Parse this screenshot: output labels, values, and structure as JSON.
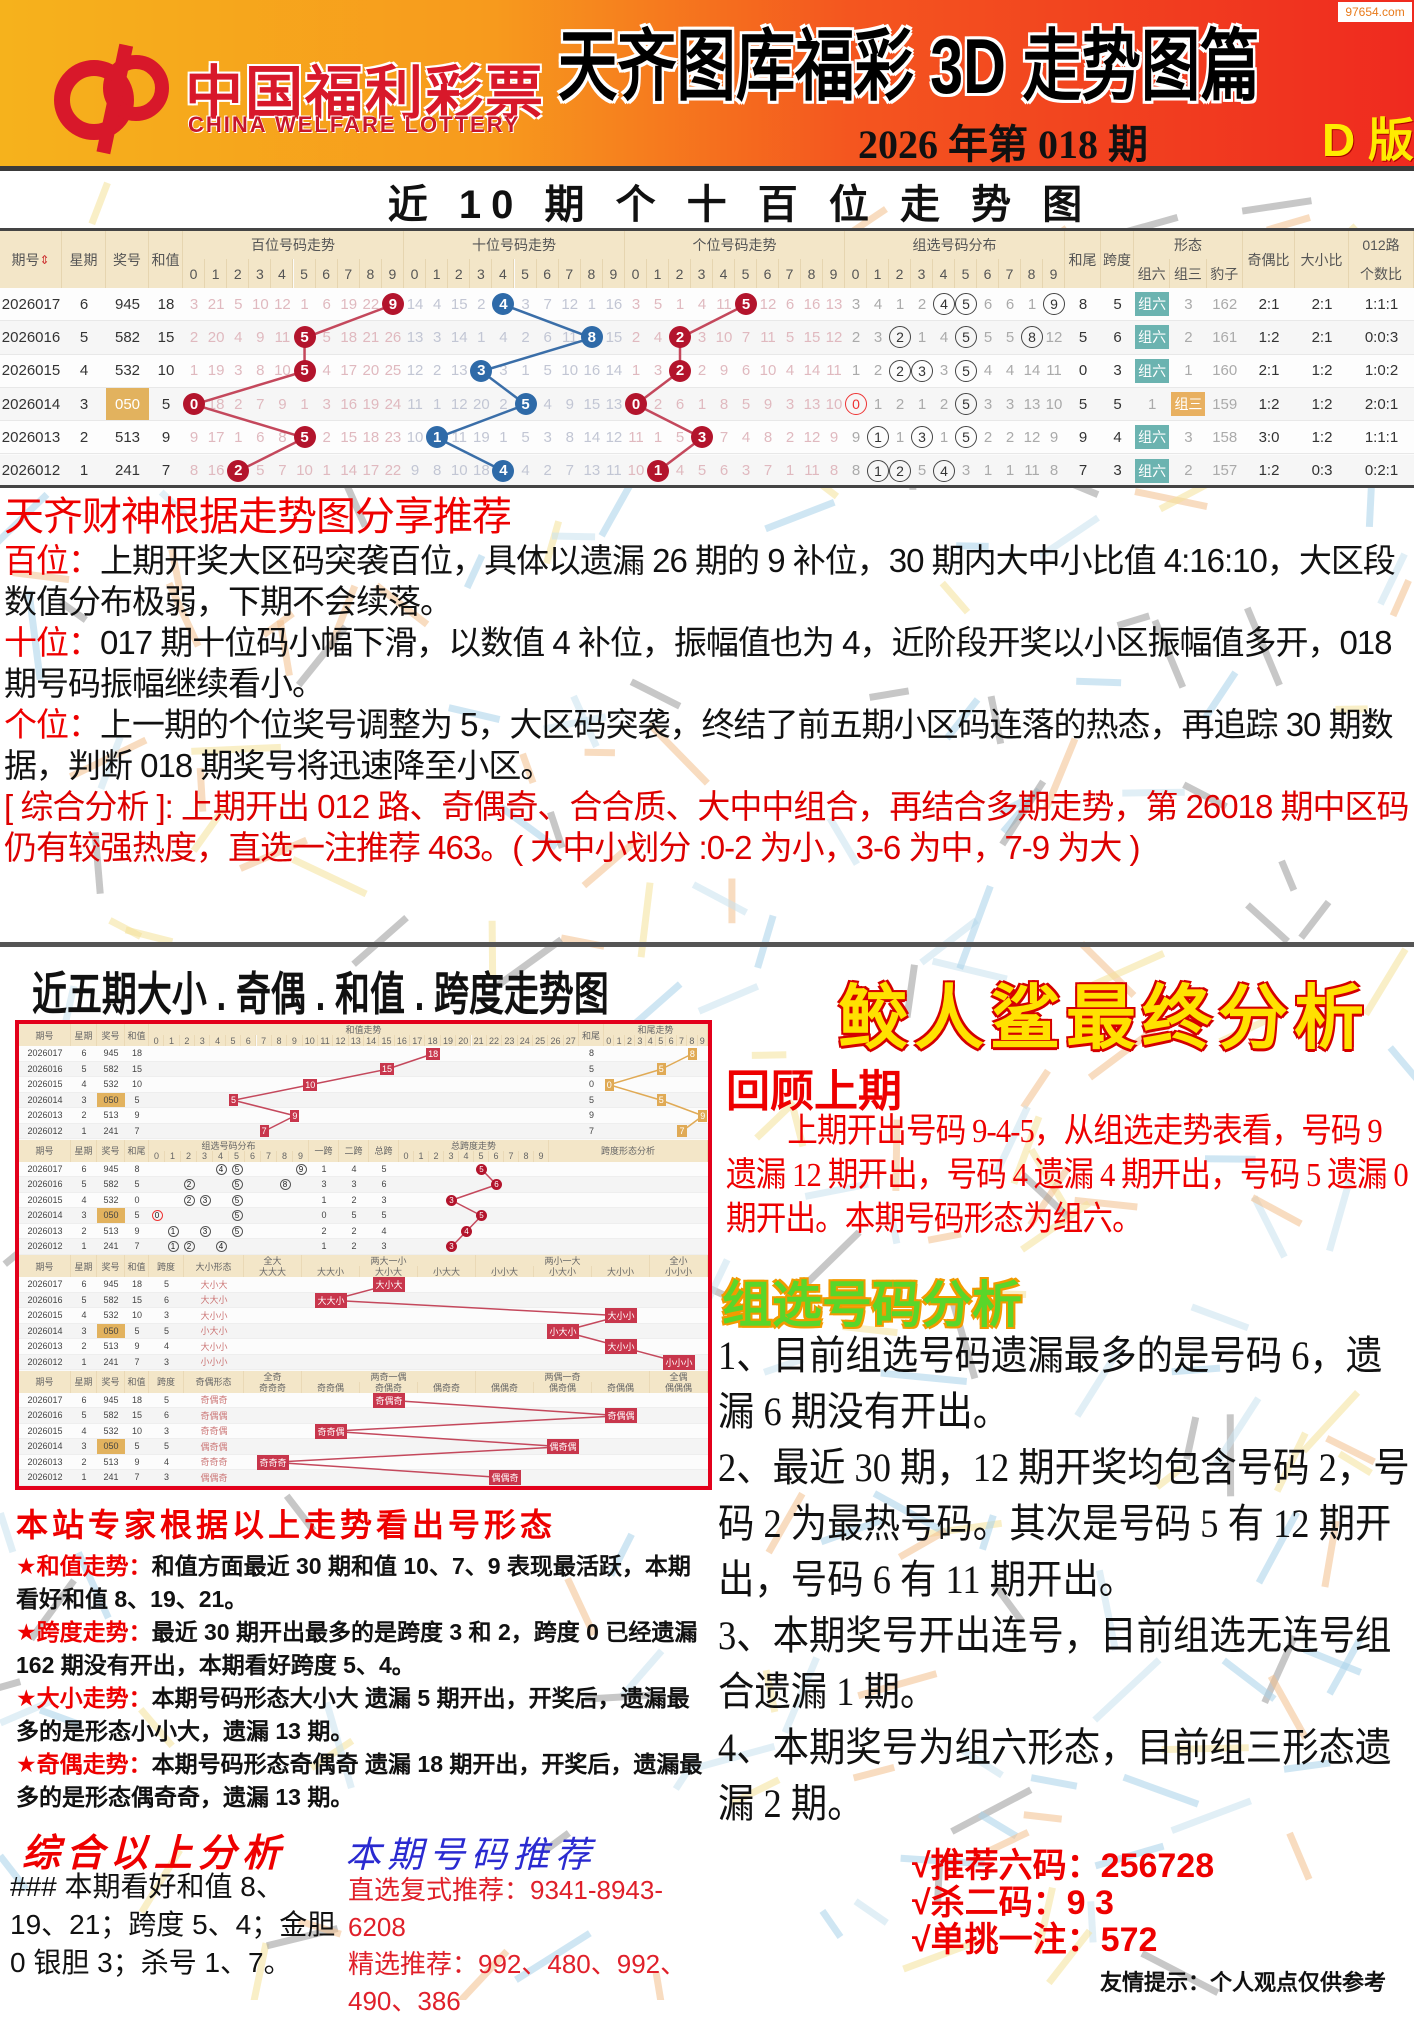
{
  "header": {
    "logo_cn": "中国福利彩票",
    "logo_en": "CHINA WELFARE LOTTERY",
    "title": "天齐图库福彩 3D 走势图篇",
    "issue": "2026 年第 018 期",
    "edition": "D 版",
    "watermark": "97654.com",
    "brand_color": "#d8182a"
  },
  "trend_table": {
    "title": "近 10 期 个 十 百 位 走 势 图",
    "headers": {
      "period": "期号",
      "weekday": "星期",
      "number": "奖号",
      "sum": "和值",
      "hundreds": "百位号码走势",
      "tens": "十位号码走势",
      "units": "个位号码走势",
      "group": "组选号码分布",
      "sum_tail": "和尾",
      "span": "跨度",
      "shape": "形态",
      "shape_cols": [
        "组六",
        "组三",
        "豹子"
      ],
      "odd_even": "奇偶比",
      "big_small": "大小比",
      "route": "012路",
      "route_sub": "个数比",
      "digits": [
        "0",
        "1",
        "2",
        "3",
        "4",
        "5",
        "6",
        "7",
        "8",
        "9"
      ]
    },
    "sort_icon": "sort-up-down-icon",
    "rows": [
      {
        "period": "2026017",
        "weekday": "6",
        "number": "945",
        "sum": "18",
        "hundreds": [
          "3",
          "21",
          "5",
          "10",
          "12",
          "1",
          "6",
          "19",
          "22",
          "9"
        ],
        "tens": [
          "14",
          "4",
          "15",
          "2",
          "4",
          "3",
          "7",
          "12",
          "1",
          "16"
        ],
        "units": [
          "3",
          "5",
          "1",
          "4",
          "11",
          "5",
          "12",
          "6",
          "16",
          "13"
        ],
        "group": [
          "3",
          "4",
          "1",
          "2",
          "4",
          "5",
          "6",
          "6",
          "1",
          "9"
        ],
        "sum_tail": "8",
        "span": "5",
        "shape": [
          "组六",
          "3",
          "162"
        ],
        "shape_hit": 0,
        "odd_even": "2:1",
        "big_small": "2:1",
        "route": "1:1:1"
      },
      {
        "period": "2026016",
        "weekday": "5",
        "number": "582",
        "sum": "15",
        "hundreds": [
          "2",
          "20",
          "4",
          "9",
          "11",
          "5",
          "5",
          "18",
          "21",
          "26"
        ],
        "tens": [
          "13",
          "3",
          "14",
          "1",
          "4",
          "2",
          "6",
          "11",
          "8",
          "15"
        ],
        "units": [
          "2",
          "4",
          "2",
          "3",
          "10",
          "7",
          "11",
          "5",
          "15",
          "12"
        ],
        "group": [
          "2",
          "3",
          "2",
          "1",
          "4",
          "5",
          "5",
          "5",
          "8",
          "12"
        ],
        "sum_tail": "5",
        "span": "6",
        "shape": [
          "组六",
          "2",
          "161"
        ],
        "shape_hit": 0,
        "odd_even": "1:2",
        "big_small": "2:1",
        "route": "0:0:3"
      },
      {
        "period": "2026015",
        "weekday": "4",
        "number": "532",
        "sum": "10",
        "hundreds": [
          "1",
          "19",
          "3",
          "8",
          "10",
          "5",
          "4",
          "17",
          "20",
          "25"
        ],
        "tens": [
          "12",
          "2",
          "13",
          "3",
          "3",
          "1",
          "5",
          "10",
          "16",
          "14"
        ],
        "units": [
          "1",
          "3",
          "2",
          "2",
          "9",
          "6",
          "10",
          "4",
          "14",
          "11"
        ],
        "group": [
          "1",
          "2",
          "2",
          "3",
          "3",
          "5",
          "4",
          "4",
          "14",
          "11"
        ],
        "sum_tail": "0",
        "span": "3",
        "shape": [
          "组六",
          "1",
          "160"
        ],
        "shape_hit": 0,
        "odd_even": "2:1",
        "big_small": "1:2",
        "route": "1:0:2"
      },
      {
        "period": "2026014",
        "weekday": "3",
        "number": "050",
        "sum": "5",
        "hundreds": [
          "0",
          "18",
          "2",
          "7",
          "9",
          "1",
          "3",
          "16",
          "19",
          "24"
        ],
        "tens": [
          "11",
          "1",
          "12",
          "20",
          "2",
          "5",
          "4",
          "9",
          "15",
          "13"
        ],
        "units": [
          "0",
          "2",
          "6",
          "1",
          "8",
          "5",
          "9",
          "3",
          "13",
          "10"
        ],
        "group": [
          "0",
          "1",
          "2",
          "1",
          "2",
          "5",
          "3",
          "3",
          "13",
          "10"
        ],
        "sum_tail": "5",
        "span": "5",
        "shape": [
          "1",
          "组三",
          "159"
        ],
        "shape_hit": 1,
        "odd_even": "1:2",
        "big_small": "1:2",
        "route": "2:0:1"
      },
      {
        "period": "2026013",
        "weekday": "2",
        "number": "513",
        "sum": "9",
        "hundreds": [
          "9",
          "17",
          "1",
          "6",
          "8",
          "5",
          "2",
          "15",
          "18",
          "23"
        ],
        "tens": [
          "10",
          "1",
          "11",
          "19",
          "1",
          "5",
          "3",
          "8",
          "14",
          "12"
        ],
        "units": [
          "11",
          "1",
          "5",
          "3",
          "7",
          "4",
          "8",
          "2",
          "12",
          "9"
        ],
        "group": [
          "9",
          "1",
          "1",
          "3",
          "1",
          "5",
          "2",
          "2",
          "12",
          "9"
        ],
        "sum_tail": "9",
        "span": "4",
        "shape": [
          "组六",
          "3",
          "158"
        ],
        "shape_hit": 0,
        "odd_even": "3:0",
        "big_small": "1:2",
        "route": "1:1:1"
      },
      {
        "period": "2026012",
        "weekday": "1",
        "number": "241",
        "sum": "7",
        "hundreds": [
          "8",
          "16",
          "2",
          "5",
          "7",
          "10",
          "1",
          "14",
          "17",
          "22"
        ],
        "tens": [
          "9",
          "8",
          "10",
          "18",
          "4",
          "4",
          "2",
          "7",
          "13",
          "11"
        ],
        "units": [
          "10",
          "1",
          "4",
          "5",
          "6",
          "3",
          "7",
          "1",
          "11",
          "8"
        ],
        "group": [
          "8",
          "1",
          "2",
          "5",
          "4",
          "3",
          "1",
          "1",
          "11",
          "8"
        ],
        "sum_tail": "7",
        "span": "3",
        "shape": [
          "组六",
          "2",
          "157"
        ],
        "shape_hit": 0,
        "odd_even": "1:2",
        "big_small": "0:3",
        "route": "0:2:1"
      }
    ],
    "colors": {
      "hundreds": "#b3142c",
      "tens": "#2e6aa8",
      "units": "#b3142c",
      "group_six": "#6bb3b0",
      "group_three": "#e8b060"
    }
  },
  "recommend": {
    "title": "天齐财神根据走势图分享推荐",
    "items": [
      {
        "label": "百位：",
        "text": "上期开奖大区码突袭百位，具体以遗漏 26 期的 9 补位，30 期内大中小比值 4:16:10，大区段数值分布极弱，下期不会续落。"
      },
      {
        "label": "十位：",
        "text": "017 期十位码小幅下滑，以数值 4 补位，振幅值也为 4，近阶段开奖以小区振幅值多开，018 期号码振幅继续看小。"
      },
      {
        "label": "个位：",
        "text": "上一期的个位奖号调整为 5，大区码突袭，终结了前五期小区码连落的热态，再追踪 30 期数据，判断 018 期奖号将迅速降至小区。"
      }
    ],
    "summary": "[ 综合分析 ]: 上期开出 012 路、奇偶奇、合合质、大中中组合，再结合多期走势，第 26018 期中区码仍有较强热度，直选一注推荐 463。( 大中小划分 :0-2 为小，3-6 为中，7-9 为大 )"
  },
  "five_chart": {
    "title": "近五期大小 . 奇偶 . 和值 . 跨度走势图",
    "headers": {
      "period": "期号",
      "weekday": "星期",
      "number": "奖号"
    },
    "rows": [
      {
        "period": "2026017",
        "weekday": "6",
        "number": "945",
        "sum": "18",
        "sum_tail": "8",
        "span1": "1",
        "span2": "4",
        "span": "5",
        "big_small": "大小大",
        "odd_even": "奇偶奇"
      },
      {
        "period": "2026016",
        "weekday": "5",
        "number": "582",
        "sum": "15",
        "sum_tail": "5",
        "span1": "3",
        "span2": "3",
        "span": "6",
        "big_small": "大大小",
        "odd_even": "奇偶偶"
      },
      {
        "period": "2026015",
        "weekday": "4",
        "number": "532",
        "sum": "10",
        "sum_tail": "0",
        "span1": "1",
        "span2": "2",
        "span": "3",
        "big_small": "大小小",
        "odd_even": "奇奇偶"
      },
      {
        "period": "2026014",
        "weekday": "3",
        "number": "050",
        "sum": "5",
        "sum_tail": "5",
        "span1": "0",
        "span2": "5",
        "span": "5",
        "big_small": "小大小",
        "odd_even": "偶奇偶"
      },
      {
        "period": "2026013",
        "weekday": "2",
        "number": "513",
        "sum": "9",
        "sum_tail": "9",
        "span1": "2",
        "span2": "2",
        "span": "4",
        "big_small": "大小小",
        "odd_even": "奇奇奇"
      },
      {
        "period": "2026012",
        "weekday": "1",
        "number": "241",
        "sum": "7",
        "sum_tail": "7",
        "span1": "1",
        "span2": "2",
        "span": "3",
        "big_small": "小小小",
        "odd_even": "偶偶奇"
      }
    ],
    "sum_section": {
      "label": "和值",
      "title": "和值走势",
      "tail_label": "和尾",
      "tail_title": "和尾走势"
    },
    "group_section": {
      "label": "和尾",
      "title": "组选号码分布",
      "span_cols": [
        "一跨",
        "二跨",
        "总跨"
      ],
      "span_title": "总跨度走势",
      "shape_title": "跨度形态分析"
    },
    "bs_section": {
      "label": "和值",
      "span": "跨度",
      "shape": "大小形态",
      "groups": [
        {
          "title": "全大",
          "cols": [
            "大大大"
          ]
        },
        {
          "title": "两大一小",
          "cols": [
            "大大小",
            "大小大",
            "小大大"
          ]
        },
        {
          "title": "两小一大",
          "cols": [
            "小小大",
            "小大小",
            "大小小"
          ]
        },
        {
          "title": "全小",
          "cols": [
            "小小小"
          ]
        }
      ]
    },
    "oe_section": {
      "label": "和值",
      "span": "跨度",
      "shape": "奇偶形态",
      "groups": [
        {
          "title": "全奇",
          "cols": [
            "奇奇奇"
          ]
        },
        {
          "title": "两奇一偶",
          "cols": [
            "奇奇偶",
            "奇偶奇",
            "偶奇奇"
          ]
        },
        {
          "title": "两偶一奇",
          "cols": [
            "偶偶奇",
            "偶奇偶",
            "奇偶偶"
          ]
        },
        {
          "title": "全偶",
          "cols": [
            "偶偶偶"
          ]
        }
      ]
    }
  },
  "expert": {
    "title": "本站专家根据以上走势看出号形态",
    "items": [
      {
        "label": "★和值走势：",
        "text": "和值方面最近 30 期和值 10、7、9 表现最活跃，本期看好和值 8、19、21。"
      },
      {
        "label": "★跨度走势：",
        "text": "最近 30 期开出最多的是跨度 3 和 2，跨度 0 已经遗漏 162 期没有开出，本期看好跨度 5、4。"
      },
      {
        "label": "★大小走势：",
        "text": "本期号码形态大小大 遗漏 5 期开出，开奖后，遗漏最多的是形态小小大，遗漏 13 期。"
      },
      {
        "label": "★奇偶走势：",
        "text": "本期号码形态奇偶奇 遗漏 18 期开出，开奖后，遗漏最多的是形态偶奇奇，遗漏 13 期。"
      }
    ]
  },
  "conclusion": {
    "title": "综合以上分析",
    "text": "### 本期看好和值 8、19、21；跨度 5、4；金胆 0 银胆 3；杀号 1、7。"
  },
  "picks": {
    "title": "本期号码推荐",
    "lines": [
      "直选复式推荐：9341-8943-6208",
      "精选推荐：992、480、992、490、386"
    ]
  },
  "final": {
    "title": "鲛人鲨最终分析",
    "review_title": "回顾上期",
    "review_text": "上期开出号码 9-4-5，从组选走势表看，号码 9 遗漏 12 期开出，号码 4 遗漏 4 期开出，号码 5 遗漏 0 期开出。本期号码形态为组六。",
    "group_title": "组选号码分析",
    "group_items": [
      "1、目前组选号码遗漏最多的是号码 6，遗漏 6 期没有开出。",
      "2、最近 30 期，12 期开奖均包含号码 2，号码 2 为最热号码。其次是号码 5 有 12 期开出，号码 6 有 11 期开出。",
      "3、本期奖号开出连号，目前组选无连号组合遗漏 1 期。",
      "4、本期奖号为组六形态，目前组三形态遗漏 2 期。"
    ],
    "picks": [
      "√推荐六码：256728",
      "√杀二码：9 3",
      "√单挑一注：572"
    ],
    "footer": "友情提示：个人观点仅供参考"
  }
}
